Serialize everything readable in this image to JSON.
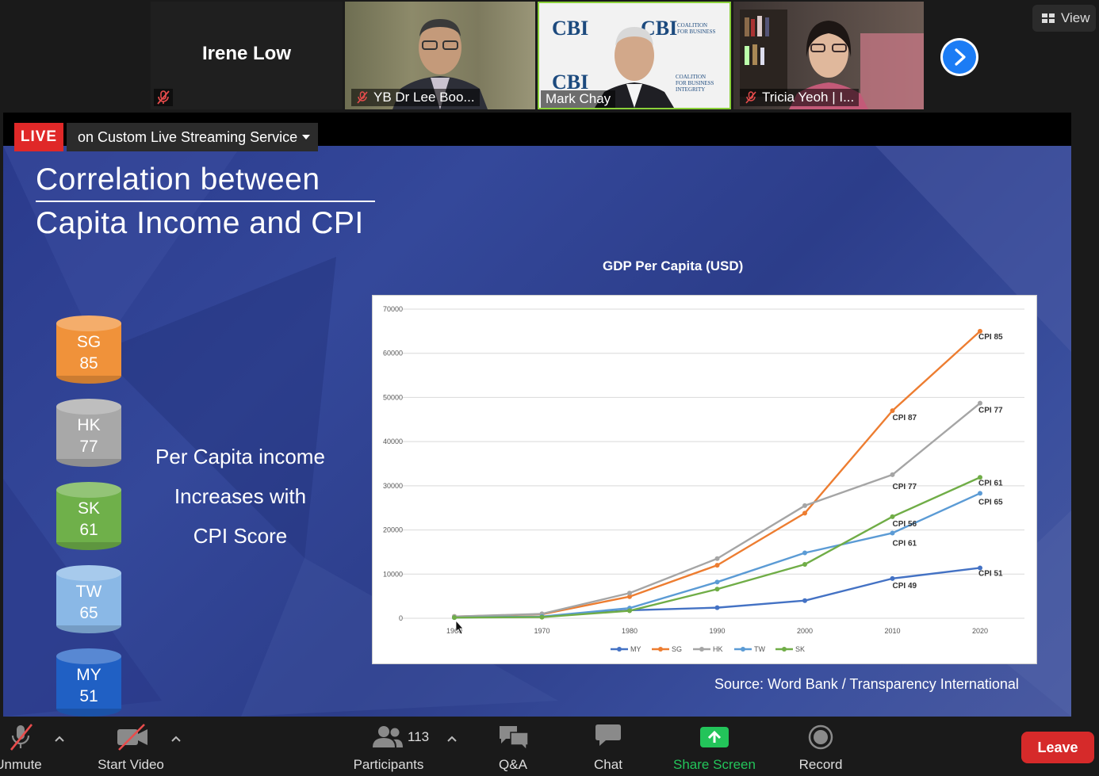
{
  "participants": [
    {
      "name": "Irene Low",
      "type": "name-only"
    },
    {
      "name": "YB Dr Lee Boo...",
      "type": "video"
    },
    {
      "name": "Mark Chay",
      "type": "video",
      "active_speaker": true
    },
    {
      "name": "Tricia Yeoh | I...",
      "type": "video"
    }
  ],
  "view_button": {
    "label": "View"
  },
  "stream": {
    "live_label": "LIVE",
    "service": "on Custom Live Streaming Service"
  },
  "backdrop": {
    "logo_text": "CBI",
    "tagline": "COALITION FOR BUSINESS INTEGRITY"
  },
  "slide": {
    "title_line1": "Correlation between",
    "title_line2": "Capita Income and CPI",
    "cylinders": [
      {
        "country": "SG",
        "score": "85",
        "color": "#f0923a"
      },
      {
        "country": "HK",
        "score": "77",
        "color": "#a8a8a8"
      },
      {
        "country": "SK",
        "score": "61",
        "color": "#6fb04a"
      },
      {
        "country": "TW",
        "score": "65",
        "color": "#8ab8e6"
      },
      {
        "country": "MY",
        "score": "51",
        "color": "#2060c4"
      }
    ],
    "middle_text": [
      "Per Capita income",
      "Increases with",
      "CPI Score"
    ],
    "source": "Source: Word Bank / Transparency International"
  },
  "chart_data": {
    "type": "line",
    "title": "GDP Per Capita (USD)",
    "x": [
      1960,
      1970,
      1980,
      1990,
      2000,
      2010,
      2020
    ],
    "x_ticks": [
      "1960",
      "1970",
      "1980",
      "1990",
      "2000",
      "2010",
      "2020"
    ],
    "ylim": [
      0,
      70000
    ],
    "y_ticks": [
      "0",
      "10000",
      "20000",
      "30000",
      "40000",
      "50000",
      "60000",
      "70000"
    ],
    "grid": true,
    "legend_position": "bottom",
    "series": [
      {
        "name": "MY",
        "color": "#4472c4",
        "values": [
          300,
          350,
          1800,
          2400,
          4000,
          9000,
          11400
        ]
      },
      {
        "name": "SG",
        "color": "#ed7d31",
        "values": [
          400,
          900,
          4900,
          12000,
          23800,
          47000,
          65000
        ]
      },
      {
        "name": "HK",
        "color": "#a5a5a5",
        "values": [
          400,
          1000,
          5700,
          13500,
          25500,
          32500,
          48700
        ]
      },
      {
        "name": "TW",
        "color": "#5b9bd5",
        "values": [
          150,
          400,
          2300,
          8200,
          14800,
          19300,
          28300
        ]
      },
      {
        "name": "SK",
        "color": "#70ad47",
        "values": [
          150,
          250,
          1700,
          6600,
          12200,
          23000,
          31900
        ]
      }
    ],
    "annotations": [
      {
        "text": "CPI 85",
        "series": "SG",
        "x": 2020
      },
      {
        "text": "CPI 87",
        "series": "SG",
        "x": 2010
      },
      {
        "text": "CPI 77",
        "series": "HK",
        "x": 2020
      },
      {
        "text": "CPI 77",
        "series": "HK",
        "x": 2010
      },
      {
        "text": "CPI 61",
        "series": "SK",
        "x": 2020
      },
      {
        "text": "CPI 65",
        "series": "TW",
        "x": 2020
      },
      {
        "text": "CPI 56",
        "series": "SK",
        "x": 2010
      },
      {
        "text": "CPI 61",
        "series": "TW",
        "x": 2010
      },
      {
        "text": "CPI 49",
        "series": "MY",
        "x": 2010
      },
      {
        "text": "CPI 51",
        "series": "MY",
        "x": 2020
      }
    ]
  },
  "toolbar": {
    "unmute": "Unmute",
    "start_video": "Start Video",
    "participants": "Participants",
    "participants_count": "113",
    "qa": "Q&A",
    "chat": "Chat",
    "share_screen": "Share Screen",
    "record": "Record",
    "leave": "Leave",
    "share_color": "#23c45a",
    "leave_color": "#d62a2a"
  }
}
